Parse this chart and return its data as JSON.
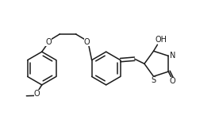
{
  "bg_color": "#ffffff",
  "line_color": "#1a1a1a",
  "lw": 1.1,
  "fs": 7.0,
  "xlim": [
    0.0,
    9.5
  ],
  "ylim": [
    1.0,
    5.5
  ],
  "figsize": [
    2.76,
    1.46
  ],
  "dpi": 100
}
